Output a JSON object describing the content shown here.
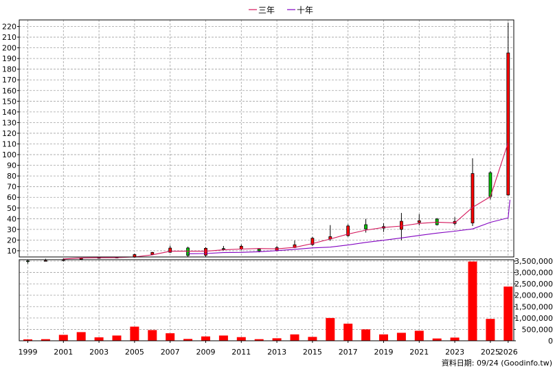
{
  "chart_data": {
    "type": "candlestick",
    "legend": {
      "placement": "top-center",
      "entries": [
        {
          "label": "三年",
          "color": "#d4145a"
        },
        {
          "label": "十年",
          "color": "#8000c0"
        }
      ]
    },
    "grid": true,
    "years": [
      "1999",
      "2000",
      "2001",
      "2002",
      "2003",
      "2004",
      "2005",
      "2006",
      "2007",
      "2008",
      "2009",
      "2010",
      "2011",
      "2012",
      "2013",
      "2014",
      "2015",
      "2016",
      "2017",
      "2018",
      "2019",
      "2020",
      "2021",
      "2022",
      "2023",
      "2024",
      "2025",
      "2026"
    ],
    "x_tick_labels": [
      "1999",
      "2001",
      "2003",
      "2005",
      "2007",
      "2009",
      "2011",
      "2013",
      "2015",
      "2017",
      "2019",
      "2021",
      "2023",
      "2025",
      "2026"
    ],
    "price_axis": {
      "ylim": [
        0,
        227
      ],
      "ticks": [
        10,
        20,
        30,
        40,
        50,
        60,
        70,
        80,
        90,
        100,
        110,
        120,
        130,
        140,
        150,
        160,
        170,
        180,
        190,
        200,
        210,
        220
      ]
    },
    "volume_axis": {
      "ylim": [
        0,
        3500000
      ],
      "ticks": [
        0,
        500000,
        1000000,
        1500000,
        2000000,
        2500000,
        3000000,
        3500000
      ],
      "tick_labels": [
        "0",
        "500,000",
        "1,000,000",
        "1,500,000",
        "2,000,000",
        "2,500,000",
        "3,000,000",
        "3,500,000"
      ]
    },
    "ohlc": [
      {
        "open": 0.5,
        "high": 1.5,
        "low": -2,
        "close": 0
      },
      {
        "open": 0.6,
        "high": 2.5,
        "low": 0.3,
        "close": 0.8
      },
      {
        "open": 1,
        "high": 3,
        "low": 0,
        "close": 1.6
      },
      {
        "open": 2,
        "high": 3.5,
        "low": 1.4,
        "close": 2.9
      },
      {
        "open": 3.2,
        "high": 4,
        "low": 2.6,
        "close": 3.6
      },
      {
        "open": 3.6,
        "high": 4.4,
        "low": 3,
        "close": 3.9
      },
      {
        "open": 4,
        "high": 7.4,
        "low": 3.4,
        "close": 6.4
      },
      {
        "open": 6.6,
        "high": 9,
        "low": 6,
        "close": 8.4
      },
      {
        "open": 8.6,
        "high": 14.8,
        "low": 8,
        "close": 12.5
      },
      {
        "open": 12.6,
        "high": 13.8,
        "low": 4,
        "close": 5.6
      },
      {
        "open": 5.8,
        "high": 13.2,
        "low": 4.2,
        "close": 12.3
      },
      {
        "open": 12,
        "high": 14.5,
        "low": 10.3,
        "close": 11.4
      },
      {
        "open": 11.5,
        "high": 15.8,
        "low": 10.5,
        "close": 14.2
      },
      {
        "open": 11.5,
        "high": 12,
        "low": 8.5,
        "close": 9.9
      },
      {
        "open": 10.1,
        "high": 14.5,
        "low": 9.6,
        "close": 12.9
      },
      {
        "open": 13,
        "high": 19.5,
        "low": 12.5,
        "close": 15.6
      },
      {
        "open": 15.8,
        "high": 23,
        "low": 14.5,
        "close": 21.7
      },
      {
        "open": 21,
        "high": 34,
        "low": 19.3,
        "close": 23.2
      },
      {
        "open": 24.1,
        "high": 34.7,
        "low": 23.2,
        "close": 33.2
      },
      {
        "open": 34.4,
        "high": 39.9,
        "low": 27,
        "close": 30.4
      },
      {
        "open": 31.2,
        "high": 35.7,
        "low": 27.6,
        "close": 32.6
      },
      {
        "open": 30,
        "high": 45.4,
        "low": 19.8,
        "close": 37.6
      },
      {
        "open": 36.5,
        "high": 44.3,
        "low": 33.7,
        "close": 38.1
      },
      {
        "open": 39.7,
        "high": 40.6,
        "low": 33.6,
        "close": 34.4
      },
      {
        "open": 35.5,
        "high": 41.4,
        "low": 33.7,
        "close": 37.5
      },
      {
        "open": 36,
        "high": 96.6,
        "low": 33.1,
        "close": 82.3
      },
      {
        "open": 83,
        "high": 84.7,
        "low": 58,
        "close": 60.8
      },
      {
        "open": 62.2,
        "high": 223.7,
        "low": 61.6,
        "close": 195.2
      }
    ],
    "volume": [
      60000,
      70000,
      260000,
      380000,
      150000,
      230000,
      620000,
      470000,
      330000,
      80000,
      190000,
      230000,
      160000,
      70000,
      110000,
      280000,
      170000,
      1000000,
      750000,
      500000,
      280000,
      350000,
      440000,
      100000,
      140000,
      3480000,
      960000,
      2380000
    ],
    "ma_three_year": [
      {
        "year": "2001",
        "value": 2.3
      },
      {
        "year": "2002",
        "value": 3.3
      },
      {
        "year": "2003",
        "value": 3.5
      },
      {
        "year": "2004",
        "value": 3.6
      },
      {
        "year": "2005",
        "value": 4.2
      },
      {
        "year": "2006",
        "value": 6.2
      },
      {
        "year": "2007",
        "value": 9.5
      },
      {
        "year": "2008",
        "value": 9.6
      },
      {
        "year": "2009",
        "value": 9.5
      },
      {
        "year": "2010",
        "value": 10.9
      },
      {
        "year": "2011",
        "value": 11.6
      },
      {
        "year": "2012",
        "value": 12.1
      },
      {
        "year": "2013",
        "value": 11.8
      },
      {
        "year": "2014",
        "value": 13.1
      },
      {
        "year": "2015",
        "value": 16.7
      },
      {
        "year": "2016",
        "value": 21
      },
      {
        "year": "2017",
        "value": 25.6
      },
      {
        "year": "2018",
        "value": 29.3
      },
      {
        "year": "2019",
        "value": 31.8
      },
      {
        "year": "2020",
        "value": 33.1
      },
      {
        "year": "2021",
        "value": 35.6
      },
      {
        "year": "2022",
        "value": 36.7
      },
      {
        "year": "2023",
        "value": 36.1
      },
      {
        "year": "2024",
        "value": 50.6
      },
      {
        "year": "2025",
        "value": 60.5
      },
      {
        "year": "2026",
        "value": 111.3
      }
    ],
    "ma_ten_year": [
      {
        "year": "2008",
        "value": 7.2
      },
      {
        "year": "2009",
        "value": 7.4
      },
      {
        "year": "2010",
        "value": 8.3
      },
      {
        "year": "2011",
        "value": 8.5
      },
      {
        "year": "2012",
        "value": 9.1
      },
      {
        "year": "2013",
        "value": 10.1
      },
      {
        "year": "2014",
        "value": 11.3
      },
      {
        "year": "2015",
        "value": 12.7
      },
      {
        "year": "2016",
        "value": 13.4
      },
      {
        "year": "2017",
        "value": 15.4
      },
      {
        "year": "2018",
        "value": 17.8
      },
      {
        "year": "2019",
        "value": 19.8
      },
      {
        "year": "2020",
        "value": 22
      },
      {
        "year": "2021",
        "value": 24.3
      },
      {
        "year": "2022",
        "value": 26.5
      },
      {
        "year": "2023",
        "value": 28.3
      },
      {
        "year": "2024",
        "value": 30.4
      },
      {
        "year": "2025",
        "value": 36.6
      },
      {
        "year": "2026",
        "value": 40.8
      },
      {
        "year": "2026.1",
        "value": 57.7
      }
    ],
    "colors": {
      "up": "#ff0000",
      "down": "#00c000",
      "volume": "#ff0000",
      "ma_three_year": "#d4145a",
      "ma_ten_year": "#8000c0",
      "grid": "#a0a0a0"
    },
    "footer": "資料日期: 09/24  (Goodinfo.tw)"
  }
}
